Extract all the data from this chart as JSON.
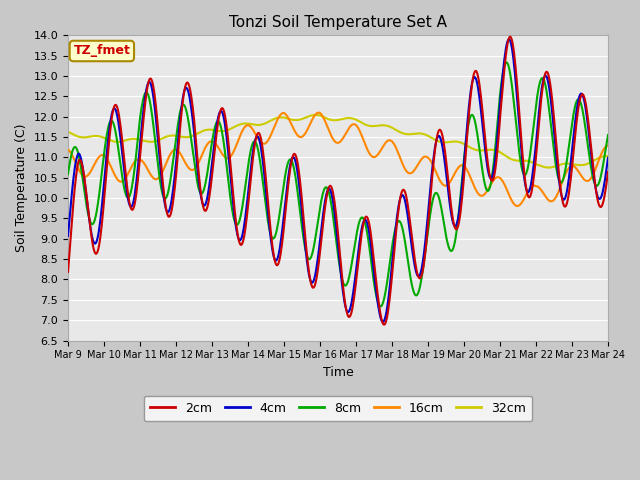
{
  "title": "Tonzi Soil Temperature Set A",
  "xlabel": "Time",
  "ylabel": "Soil Temperature (C)",
  "ylim": [
    6.5,
    14.0
  ],
  "yticks": [
    6.5,
    7.0,
    7.5,
    8.0,
    8.5,
    9.0,
    9.5,
    10.0,
    10.5,
    11.0,
    11.5,
    12.0,
    12.5,
    13.0,
    13.5,
    14.0
  ],
  "xtick_labels": [
    "Mar 9",
    "Mar 10",
    "Mar 11",
    "Mar 12",
    "Mar 13",
    "Mar 14",
    "Mar 15",
    "Mar 16",
    "Mar 17",
    "Mar 18",
    "Mar 19",
    "Mar 20",
    "Mar 21",
    "Mar 22",
    "Mar 23",
    "Mar 24"
  ],
  "colors": {
    "2cm": "#cc0000",
    "4cm": "#0000cc",
    "8cm": "#00aa00",
    "16cm": "#ff8800",
    "32cm": "#cccc00"
  },
  "legend_label": "TZ_fmet",
  "fig_bg": "#c8c8c8",
  "plot_bg": "#e8e8e8",
  "grid_color": "#ffffff"
}
